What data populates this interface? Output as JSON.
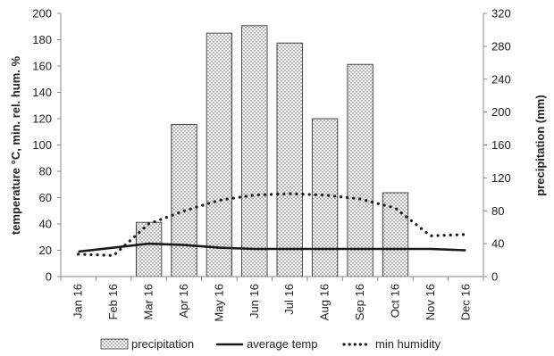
{
  "chart_data": {
    "type": "bar",
    "categories": [
      "Jan 16",
      "Feb 16",
      "Mar 16",
      "Apr 16",
      "May 16",
      "Jun 16",
      "Jul 16",
      "Aug 16",
      "Sep 16",
      "Oct 16",
      "Nov 16",
      "Dec 16"
    ],
    "title": "",
    "xlabel": "",
    "ylabel_left": "temperature °C, min. rel. hum. %",
    "ylabel_right": "precipitation (mm)",
    "ylim_left": [
      0,
      200
    ],
    "ylim_right": [
      0,
      320
    ],
    "yticks_left": [
      0,
      20,
      40,
      60,
      80,
      100,
      120,
      140,
      160,
      180,
      200
    ],
    "yticks_right": [
      0,
      40,
      80,
      120,
      160,
      200,
      240,
      280,
      320
    ],
    "grid": false,
    "legend_position": "bottom",
    "series": [
      {
        "name": "precipitation",
        "type": "bar",
        "axis": "right",
        "values": [
          0,
          0,
          66,
          185,
          296,
          305,
          284,
          192,
          258,
          102,
          0,
          0
        ]
      },
      {
        "name": "average temp",
        "type": "line",
        "axis": "left",
        "values": [
          19,
          22,
          25,
          24,
          22,
          21,
          21,
          21,
          21,
          21,
          21,
          20
        ]
      },
      {
        "name": "min humidity",
        "type": "line",
        "axis": "left",
        "values": [
          17,
          16,
          40,
          50,
          58,
          62,
          63,
          62,
          59,
          52,
          31,
          32
        ]
      }
    ],
    "colors": {
      "bar_fill": "#ffffff",
      "bar_dots": "#444444",
      "line": "#1a1a1a"
    }
  }
}
